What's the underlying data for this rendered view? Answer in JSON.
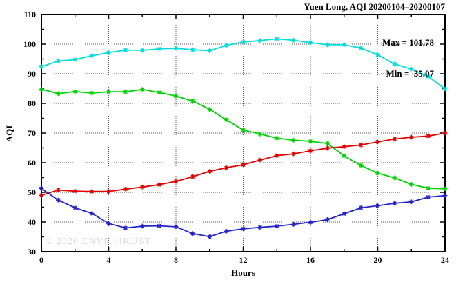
{
  "title": "Yuen Long, AQI 20200104–20200107",
  "legend": {
    "max_label": "Max = 101.78",
    "min_label": "Min =  35.07"
  },
  "watermark": "© 2026 ENVF, HKUST",
  "chart_data": {
    "type": "line",
    "title": "Yuen Long, AQI 20200104–20200107",
    "xlabel": "Hours",
    "ylabel": "AQI",
    "xlim": [
      0,
      24
    ],
    "ylim": [
      30,
      110
    ],
    "xticks": [
      0,
      4,
      8,
      12,
      16,
      20,
      24
    ],
    "yticks": [
      30,
      40,
      50,
      60,
      70,
      80,
      90,
      100,
      110
    ],
    "x_minor_step": 2,
    "y_minor_step": 5,
    "grid": true,
    "legend_position": "top-right",
    "annotations": {
      "max": 101.78,
      "min": 35.07
    },
    "x": [
      0,
      1,
      2,
      3,
      4,
      5,
      6,
      7,
      8,
      9,
      10,
      11,
      12,
      13,
      14,
      15,
      16,
      17,
      18,
      19,
      20,
      21,
      22,
      23,
      24
    ],
    "series": [
      {
        "name": "series-cyan",
        "color": "#00DDDD",
        "values": [
          92.4,
          94.3,
          94.8,
          96.1,
          97.1,
          98.0,
          97.9,
          98.4,
          98.6,
          98.1,
          97.8,
          99.6,
          100.7,
          101.2,
          101.78,
          101.3,
          100.5,
          99.8,
          99.8,
          98.7,
          96.4,
          93.3,
          91.6,
          89.1,
          84.9
        ]
      },
      {
        "name": "series-green",
        "color": "#00D400",
        "values": [
          84.8,
          83.3,
          84.0,
          83.5,
          83.9,
          83.9,
          84.7,
          83.7,
          82.5,
          80.8,
          78.0,
          74.5,
          71.0,
          69.7,
          68.3,
          67.6,
          67.2,
          66.5,
          62.3,
          59.1,
          56.5,
          54.9,
          52.7,
          51.4,
          51.2
        ]
      },
      {
        "name": "series-red",
        "color": "#E00000",
        "values": [
          49.0,
          50.8,
          50.4,
          50.3,
          50.3,
          51.1,
          51.8,
          52.6,
          53.7,
          55.3,
          57.1,
          58.3,
          59.3,
          60.9,
          62.4,
          63.0,
          64.0,
          64.9,
          65.4,
          66.0,
          67.0,
          68.0,
          68.6,
          69.0,
          70.0
        ]
      },
      {
        "name": "series-blue",
        "color": "#2323CC",
        "values": [
          51.3,
          47.4,
          44.8,
          42.9,
          39.5,
          38.0,
          38.6,
          38.7,
          38.4,
          36.1,
          35.07,
          36.9,
          37.7,
          38.2,
          38.6,
          39.2,
          39.9,
          40.8,
          42.8,
          44.8,
          45.5,
          46.3,
          46.8,
          48.4,
          48.9
        ]
      }
    ],
    "frame_color": "#000000",
    "grid_color": "#555555"
  }
}
